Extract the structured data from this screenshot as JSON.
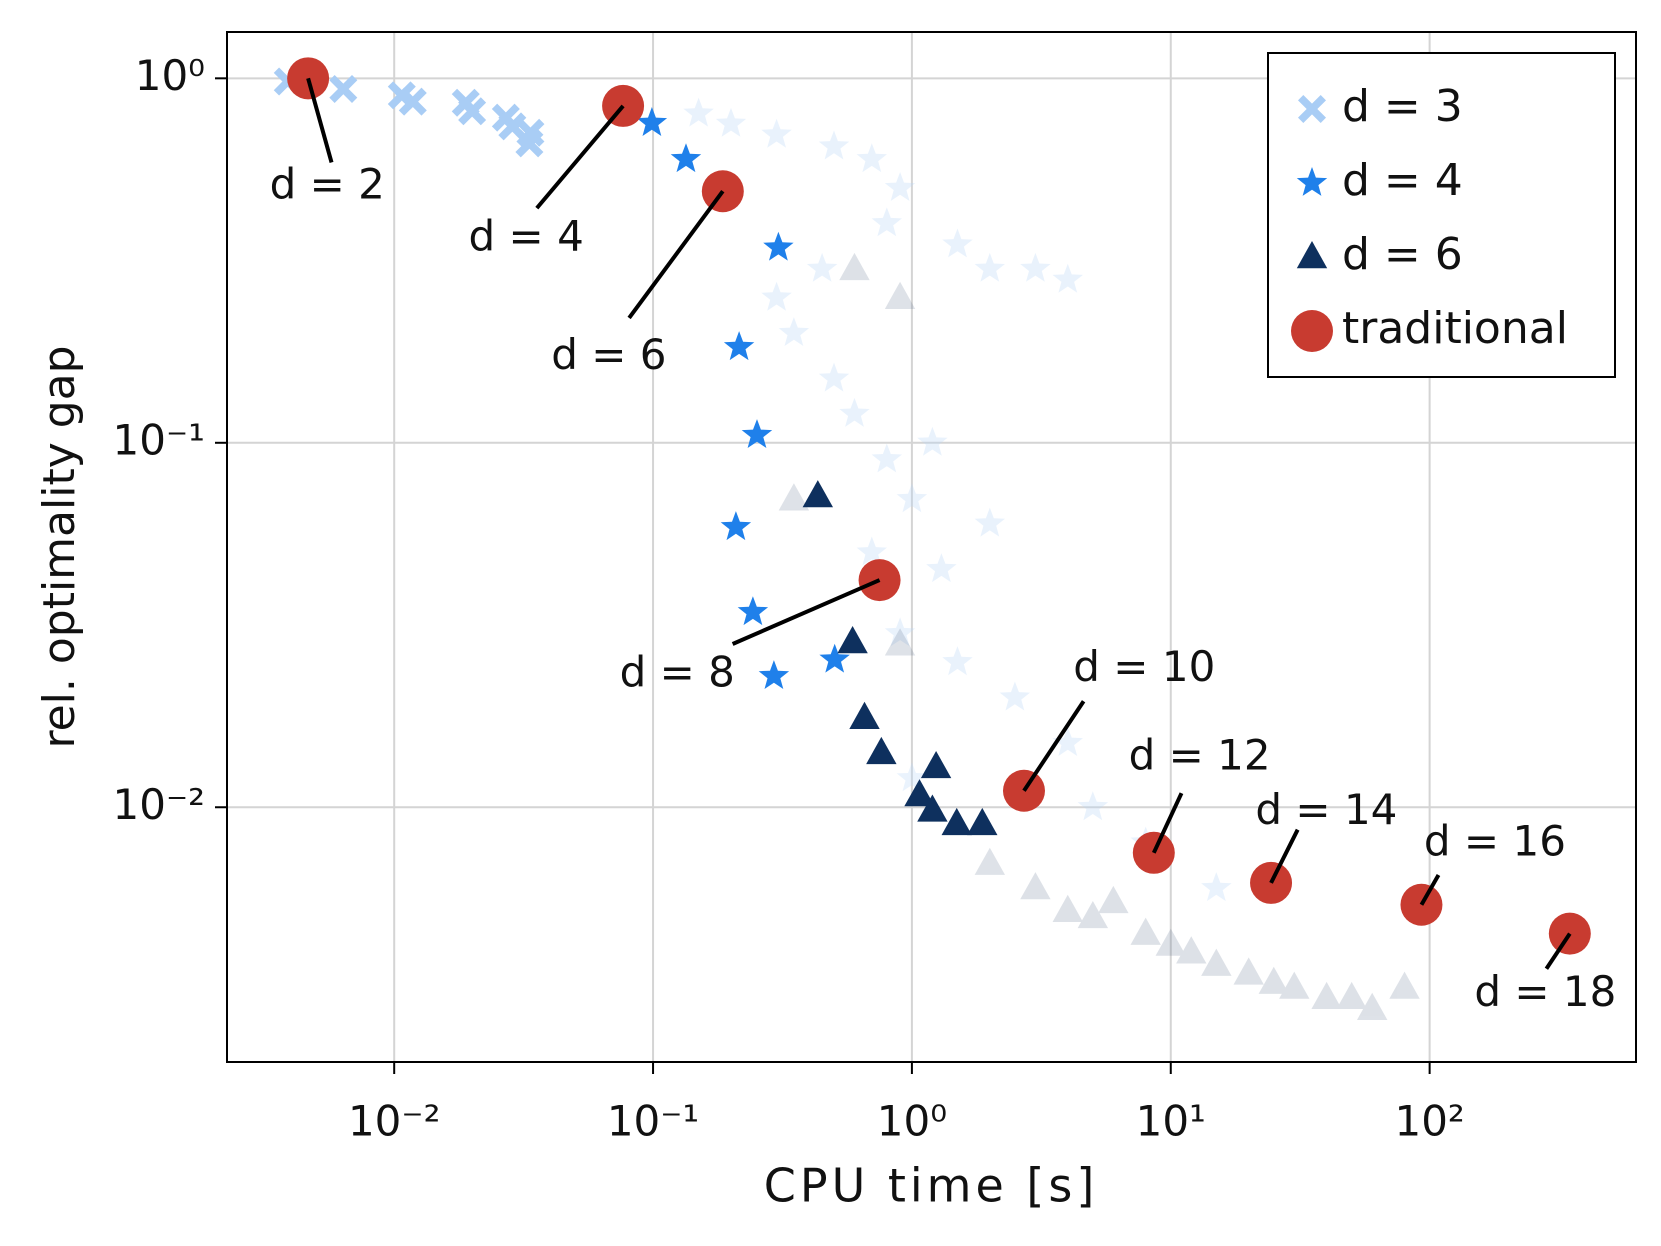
{
  "chart_data": {
    "type": "scatter",
    "xlabel": "CPU time [s]",
    "ylabel": "rel. optimality gap",
    "xscale": "log",
    "yscale": "log",
    "xlim": [
      0.00226,
      627
    ],
    "ylim": [
      0.002,
      1.34
    ],
    "xticks": [
      {
        "value": 0.01,
        "label": "10⁻²"
      },
      {
        "value": 0.1,
        "label": "10⁻¹"
      },
      {
        "value": 1,
        "label": "10⁰"
      },
      {
        "value": 10,
        "label": "10¹"
      },
      {
        "value": 100,
        "label": "10²"
      }
    ],
    "yticks": [
      {
        "value": 0.01,
        "label": "10⁻²"
      },
      {
        "value": 0.1,
        "label": "10⁻¹"
      },
      {
        "value": 1,
        "label": "10⁰"
      }
    ],
    "grid": true,
    "legend": "upper right",
    "series": [
      {
        "color": "#b9d6f7",
        "marker": "star",
        "opacity": 0.3,
        "x": [
          0.15,
          0.2,
          0.3,
          0.5,
          0.7,
          0.9,
          1.5,
          2,
          3,
          4,
          0.35,
          0.5,
          0.6,
          0.8,
          1.0,
          0.7,
          1.3,
          2,
          0.9,
          1.5,
          2.5,
          4,
          1,
          5,
          8,
          15,
          0.3,
          0.45,
          0.8,
          1.2
        ],
        "y": [
          0.8,
          0.75,
          0.7,
          0.65,
          0.6,
          0.5,
          0.35,
          0.3,
          0.3,
          0.28,
          0.2,
          0.15,
          0.12,
          0.09,
          0.07,
          0.05,
          0.045,
          0.06,
          0.03,
          0.025,
          0.02,
          0.015,
          0.012,
          0.01,
          0.008,
          0.006,
          0.25,
          0.3,
          0.4,
          0.1
        ]
      },
      {
        "color": "#5a6f8c",
        "marker": "triangle",
        "opacity": 0.2,
        "x": [
          0.6,
          0.9,
          0.35,
          0.9,
          3,
          5,
          8,
          12,
          20,
          30,
          40,
          60,
          80,
          6,
          10,
          2,
          4,
          15,
          25,
          50
        ],
        "y": [
          0.3,
          0.25,
          0.07,
          0.028,
          0.006,
          0.005,
          0.0045,
          0.004,
          0.0035,
          0.0032,
          0.003,
          0.0028,
          0.0032,
          0.0055,
          0.0042,
          0.007,
          0.0052,
          0.0037,
          0.0033,
          0.003
        ]
      },
      {
        "name": "d = 3",
        "color": "#a9cdf5",
        "marker": "cross",
        "opacity": 1,
        "x": [
          0.00388,
          0.00636,
          0.0107,
          0.0118,
          0.0189,
          0.02,
          0.027,
          0.0286,
          0.0336,
          0.0333
        ],
        "y": [
          0.98,
          0.935,
          0.898,
          0.863,
          0.857,
          0.812,
          0.78,
          0.738,
          0.709,
          0.663
        ]
      },
      {
        "name": "d = 4",
        "color": "#1f80ea",
        "marker": "star",
        "opacity": 1,
        "x": [
          0.099,
          0.134,
          0.305,
          0.215,
          0.252,
          0.209,
          0.243,
          0.293,
          0.503
        ],
        "y": [
          0.754,
          0.6,
          0.343,
          0.183,
          0.105,
          0.0587,
          0.0343,
          0.0229,
          0.0254
        ]
      },
      {
        "name": "d = 6",
        "color": "#0e305e",
        "marker": "triangle",
        "opacity": 1,
        "x": [
          0.433,
          0.59,
          0.656,
          0.762,
          1.24,
          1.07,
          1.2,
          1.49,
          1.87
        ],
        "y": [
          0.0714,
          0.0284,
          0.0176,
          0.0141,
          0.0129,
          0.0108,
          0.0098,
          0.009,
          0.009
        ]
      },
      {
        "name": "traditional",
        "color": "#c83b30",
        "marker": "circle",
        "opacity": 1,
        "x": [
          0.00465,
          0.0766,
          0.186,
          0.75,
          2.71,
          8.6,
          24.4,
          93,
          348
        ],
        "y": [
          1.0,
          0.84,
          0.49,
          0.042,
          0.0111,
          0.0075,
          0.0062,
          0.0054,
          0.0045
        ],
        "labels": [
          "d = 2",
          "d = 4",
          "d = 6",
          "d = 8",
          "d = 10",
          "d = 12",
          "d = 14",
          "d = 16",
          "d = 18"
        ]
      }
    ]
  }
}
